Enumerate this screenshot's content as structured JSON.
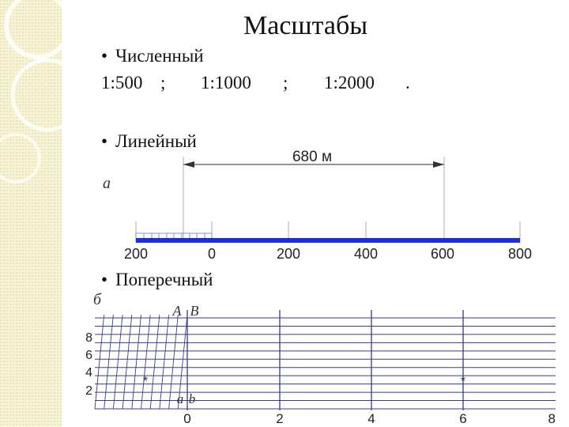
{
  "slide": {
    "title": "Масштабы",
    "bullets": {
      "numeric": "Численный",
      "linear": "Линейный",
      "transverse": "Поперечный"
    },
    "numeric_scales": [
      "1:500",
      ";",
      "1:1000",
      ";",
      "1:2000",
      "."
    ],
    "bullet_char": "•"
  },
  "linear_scale": {
    "figure_label": "а",
    "span_label": "680 м",
    "tick_labels": [
      "200",
      "0",
      "200",
      "400",
      "600",
      "800"
    ],
    "bar_color": "#1a2ee0"
  },
  "transverse_scale": {
    "figure_label": "б",
    "point_labels": [
      "А",
      "В",
      "а",
      "b"
    ],
    "y_labels": [
      "8",
      "6",
      "4",
      "2"
    ],
    "x_labels": [
      "0",
      "2",
      "4",
      "6",
      "8"
    ],
    "line_color": "#3a3a8c"
  }
}
